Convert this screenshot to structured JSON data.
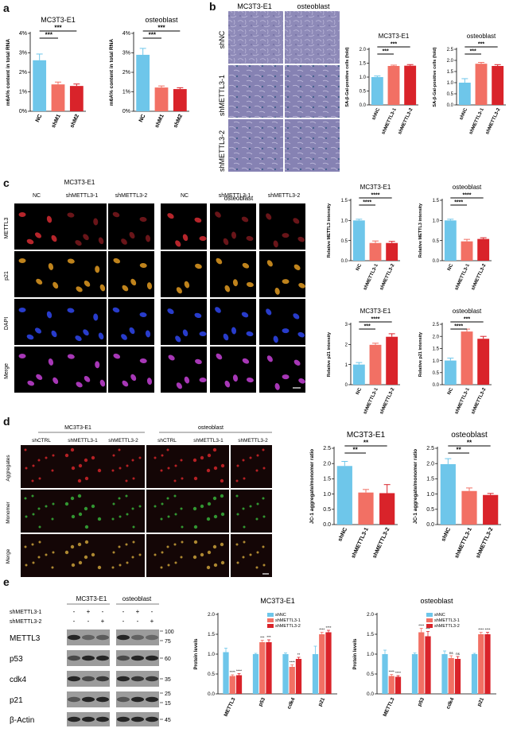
{
  "colors": {
    "nc": "#6EC6EA",
    "kd1": "#F27064",
    "kd2": "#D9232A",
    "axis": "#000000"
  },
  "labels": {
    "a": "a",
    "b": "b",
    "c": "c",
    "d": "d",
    "e": "e",
    "sig3": "***",
    "sig4": "****",
    "sig2": "**",
    "sig_s": "*",
    "sig_ns": "ns",
    "shNC": "shNC",
    "shMETTL3_1": "shMETTL3-1",
    "shMETTL3_2": "shMETTL3-2",
    "shCTRL": "shCTRL",
    "NC": "NC",
    "mc3t3": "MC3T3-E1",
    "osteoblast": "osteoblast",
    "METTL3": "METTL3",
    "p21": "p21",
    "DAPI": "DAPI",
    "Merge": "Merge",
    "Aggregates": "Aggregates",
    "Monomer": "Monomer",
    "p53": "p53",
    "cdk4": "cdk4",
    "bactin": "β-Actin",
    "plus": "+",
    "minus": "-",
    "w1": "100",
    "w2": "75",
    "w3": "60",
    "w4": "35",
    "w5": "25",
    "w6": "15",
    "w7": "45"
  },
  "chart_data": [
    {
      "id": "a1",
      "type": "bar",
      "title": "MC3T3-E1",
      "ylabel": "m6A% content in total RNA",
      "categories": [
        "NC",
        "shM1",
        "shM2"
      ],
      "values": [
        2.62,
        1.38,
        1.3
      ],
      "errors": [
        0.32,
        0.12,
        0.1
      ],
      "ylim": [
        0,
        4
      ],
      "yticks": [
        "0%",
        "1%",
        "2%",
        "3%",
        "4%"
      ],
      "sig": [
        {
          "a": 0,
          "b": 1,
          "t": "***"
        },
        {
          "a": 0,
          "b": 2,
          "t": "***"
        }
      ]
    },
    {
      "id": "a2",
      "type": "bar",
      "title": "osteoblast",
      "ylabel": "m6A% content in total RNA",
      "categories": [
        "NC",
        "shM1",
        "shM2"
      ],
      "values": [
        2.9,
        1.22,
        1.14
      ],
      "errors": [
        0.33,
        0.08,
        0.07
      ],
      "ylim": [
        0,
        4
      ],
      "yticks": [
        "0%",
        "1%",
        "2%",
        "3%",
        "4%"
      ],
      "sig": [
        {
          "a": 0,
          "b": 1,
          "t": "***"
        },
        {
          "a": 0,
          "b": 2,
          "t": "***"
        }
      ]
    },
    {
      "id": "b1",
      "type": "bar",
      "title": "MC3T3-E1",
      "ylabel": "SA-β-Gal-positive cells (fold)",
      "categories": [
        "shNC",
        "shMETTL3-1",
        "shMETTL3-2"
      ],
      "values": [
        1.0,
        1.4,
        1.41
      ],
      "errors": [
        0.04,
        0.03,
        0.04
      ],
      "ylim": [
        0,
        2.0
      ],
      "yticks": [
        "0.0",
        "0.5",
        "1.0",
        "1.5",
        "2.0"
      ],
      "sig": [
        {
          "a": 0,
          "b": 1,
          "t": "***"
        },
        {
          "a": 0,
          "b": 2,
          "t": "***"
        }
      ]
    },
    {
      "id": "b2",
      "type": "bar",
      "title": "osteoblast",
      "ylabel": "SA-β-Gal-positive cells (fold)",
      "categories": [
        "shNC",
        "shMETTL3-1",
        "shMETTL3-2"
      ],
      "values": [
        1.0,
        1.85,
        1.75
      ],
      "errors": [
        0.18,
        0.06,
        0.06
      ],
      "ylim": [
        0,
        2.5
      ],
      "yticks": [
        "0.0",
        "0.5",
        "1.0",
        "1.5",
        "2.0",
        "2.5"
      ],
      "sig": [
        {
          "a": 0,
          "b": 1,
          "t": "***"
        },
        {
          "a": 0,
          "b": 2,
          "t": "***"
        }
      ]
    },
    {
      "id": "c1",
      "type": "bar",
      "title": "MC3T3-E1",
      "ylabel": "Relative METTL3 intensity",
      "categories": [
        "NC",
        "shMETTL3-1",
        "shMETTL3-2"
      ],
      "values": [
        1.0,
        0.44,
        0.44
      ],
      "errors": [
        0.03,
        0.05,
        0.04
      ],
      "ylim": [
        0,
        1.5
      ],
      "yticks": [
        "0.0",
        "0.5",
        "1.0",
        "1.5"
      ],
      "sig": [
        {
          "a": 0,
          "b": 1,
          "t": "****"
        },
        {
          "a": 0,
          "b": 2,
          "t": "****"
        }
      ]
    },
    {
      "id": "c2",
      "type": "bar",
      "title": "osteoblast",
      "ylabel": "Relative METTL3 intensity",
      "categories": [
        "NC",
        "shMETTL3-1",
        "shMETTL3-2"
      ],
      "values": [
        1.0,
        0.48,
        0.54
      ],
      "errors": [
        0.03,
        0.05,
        0.03
      ],
      "ylim": [
        0,
        1.5
      ],
      "yticks": [
        "0.0",
        "0.5",
        "1.0",
        "1.5"
      ],
      "sig": [
        {
          "a": 0,
          "b": 1,
          "t": "****"
        },
        {
          "a": 0,
          "b": 2,
          "t": "****"
        }
      ]
    },
    {
      "id": "c3",
      "type": "bar",
      "title": "MC3T3-E1",
      "ylabel": "Relative p21 intensity",
      "categories": [
        "NC",
        "shMETTL3-1",
        "shMETTL3-2"
      ],
      "values": [
        1.0,
        1.98,
        2.38
      ],
      "errors": [
        0.1,
        0.08,
        0.15
      ],
      "ylim": [
        0,
        3
      ],
      "yticks": [
        "0",
        "1",
        "2",
        "3"
      ],
      "sig": [
        {
          "a": 0,
          "b": 1,
          "t": "***"
        },
        {
          "a": 0,
          "b": 2,
          "t": "****"
        }
      ]
    },
    {
      "id": "c4",
      "type": "bar",
      "title": "osteoblast",
      "ylabel": "Relative p21 intensity",
      "categories": [
        "NC",
        "shMETTL3-1",
        "shMETTL3-2"
      ],
      "values": [
        1.0,
        2.2,
        1.9
      ],
      "errors": [
        0.1,
        0.1,
        0.1
      ],
      "ylim": [
        0,
        2.5
      ],
      "yticks": [
        "0.0",
        "0.5",
        "1.0",
        "1.5",
        "2.0",
        "2.5"
      ],
      "sig": [
        {
          "a": 0,
          "b": 1,
          "t": "****"
        },
        {
          "a": 0,
          "b": 2,
          "t": "***"
        }
      ]
    },
    {
      "id": "d1",
      "type": "bar",
      "title": "MC3T3-E1",
      "ylabel": "JC-1 aggregate/monomer ratio",
      "categories": [
        "shNC",
        "shMETTL3-1",
        "shMETTL3-2"
      ],
      "values": [
        1.92,
        1.05,
        1.03
      ],
      "errors": [
        0.15,
        0.1,
        0.28
      ],
      "ylim": [
        0,
        2.5
      ],
      "yticks": [
        "0.0",
        "0.5",
        "1.0",
        "1.5",
        "2.0",
        "2.5"
      ],
      "sig": [
        {
          "a": 0,
          "b": 1,
          "t": "**"
        },
        {
          "a": 0,
          "b": 2,
          "t": "**"
        }
      ]
    },
    {
      "id": "d2",
      "type": "bar",
      "title": "osteoblast",
      "ylabel": "JC-1 aggregate/monomer ratio",
      "categories": [
        "shNC",
        "shMETTL3-1",
        "shMETTL3-2"
      ],
      "values": [
        1.98,
        1.1,
        0.97
      ],
      "errors": [
        0.18,
        0.1,
        0.05
      ],
      "ylim": [
        0,
        2.5
      ],
      "yticks": [
        "0.0",
        "0.5",
        "1.0",
        "1.5",
        "2.0",
        "2.5"
      ],
      "sig": [
        {
          "a": 0,
          "b": 1,
          "t": "**"
        },
        {
          "a": 0,
          "b": 2,
          "t": "**"
        }
      ]
    },
    {
      "id": "e1",
      "type": "bar",
      "title": "MC3T3-E1",
      "ylabel": "Protein levels",
      "categories": [
        "METTL3",
        "p53",
        "cdk4",
        "p21"
      ],
      "series": [
        {
          "name": "shNC",
          "values": [
            1.05,
            1.0,
            1.0,
            1.0
          ],
          "errors": [
            0.1,
            0.02,
            0.03,
            0.2
          ]
        },
        {
          "name": "shMETTL3-1",
          "values": [
            0.45,
            1.3,
            0.68,
            1.5
          ],
          "errors": [
            0.03,
            0.05,
            0.05,
            0.05
          ]
        },
        {
          "name": "shMETTL3-2",
          "values": [
            0.47,
            1.3,
            0.88,
            1.55
          ],
          "errors": [
            0.04,
            0.06,
            0.04,
            0.05
          ]
        }
      ],
      "stars": [
        [
          "",
          "****",
          "****"
        ],
        [
          "",
          "***",
          "***"
        ],
        [
          "",
          "****",
          "**"
        ],
        [
          "",
          "****",
          "****"
        ]
      ],
      "ylim": [
        0,
        2.0
      ],
      "yticks": [
        "0.0",
        "0.5",
        "1.0",
        "1.5",
        "2.0"
      ]
    },
    {
      "id": "e2",
      "type": "bar",
      "title": "osteoblast",
      "ylabel": "Protein levels",
      "categories": [
        "METTL3",
        "p53",
        "cdk4",
        "p21"
      ],
      "series": [
        {
          "name": "shNC",
          "values": [
            1.0,
            1.0,
            1.0,
            1.0
          ],
          "errors": [
            0.1,
            0.03,
            0.08,
            0.02
          ]
        },
        {
          "name": "shMETTL3-1",
          "values": [
            0.45,
            1.55,
            0.9,
            1.5
          ],
          "errors": [
            0.04,
            0.1,
            0.06,
            0.05
          ]
        },
        {
          "name": "shMETTL3-2",
          "values": [
            0.43,
            1.45,
            0.88,
            1.5
          ],
          "errors": [
            0.03,
            0.12,
            0.06,
            0.05
          ]
        }
      ],
      "stars": [
        [
          "",
          "****",
          "****"
        ],
        [
          "",
          "****",
          "***"
        ],
        [
          "",
          "ns",
          "ns"
        ],
        [
          "",
          "****",
          "****"
        ]
      ],
      "ylim": [
        0,
        2.0
      ],
      "yticks": [
        "0.0",
        "0.5",
        "1.0",
        "1.5",
        "2.0"
      ]
    }
  ]
}
